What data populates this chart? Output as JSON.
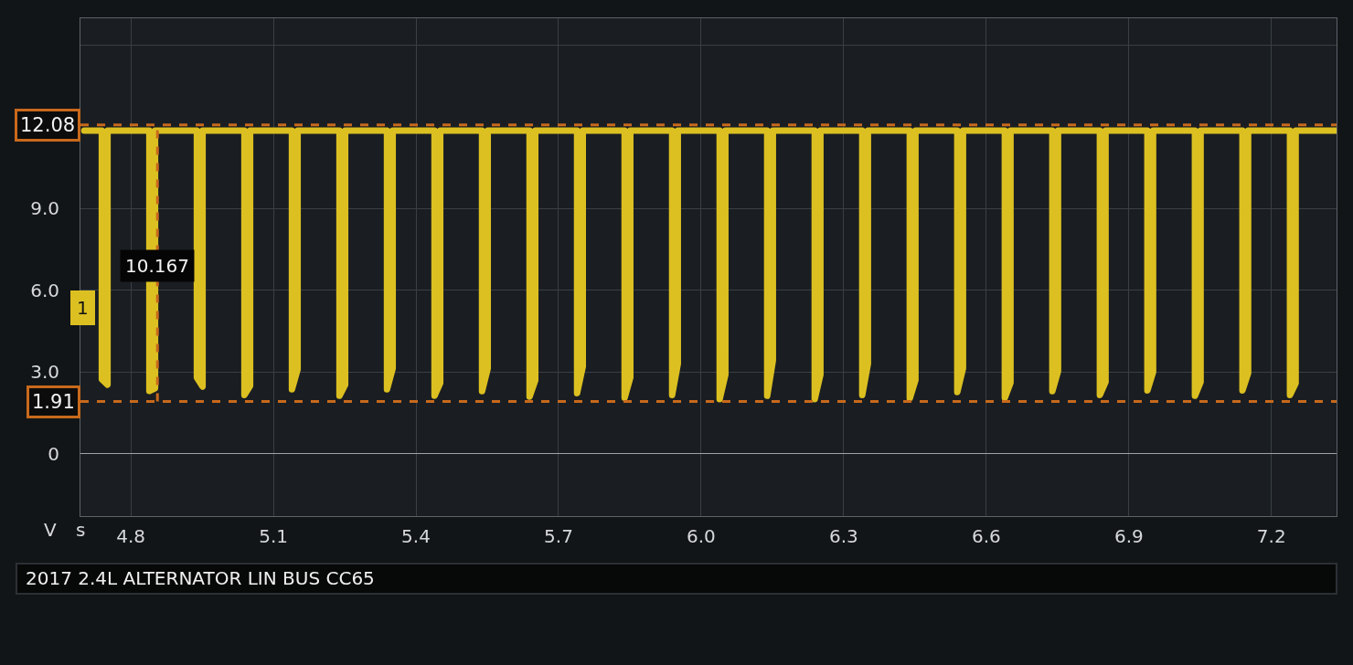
{
  "chart_data": {
    "type": "line",
    "title": "2017 2.4L ALTERNATOR LIN BUS CC65",
    "xlabel": "s",
    "ylabel": "V",
    "xlim": [
      4.694,
      7.337
    ],
    "ylim": [
      -2.3,
      16.0
    ],
    "xticks": [
      4.8,
      5.1,
      5.4,
      5.7,
      {
        "value": 6,
        "label": "6.0"
      },
      6.3,
      6.6,
      6.9,
      7.2
    ],
    "yticks": [
      0,
      {
        "value": 3,
        "label": "3.0"
      },
      {
        "value": 6,
        "label": "6.0"
      },
      {
        "value": 9,
        "label": "9.0"
      },
      {
        "value": 15,
        "label": null
      }
    ],
    "grid": true,
    "line_style": "solid",
    "series": [
      {
        "name": "1",
        "color": "#dcc021",
        "x": [
          4.702,
          4.739,
          4.739,
          4.751,
          4.751,
          4.839,
          4.839,
          4.851,
          4.851,
          4.939,
          4.939,
          4.951,
          4.951,
          5.039,
          5.039,
          5.051,
          5.051,
          5.139,
          5.139,
          5.151,
          5.151,
          5.239,
          5.239,
          5.251,
          5.251,
          5.339,
          5.339,
          5.351,
          5.351,
          5.439,
          5.439,
          5.451,
          5.451,
          5.539,
          5.539,
          5.551,
          5.551,
          5.639,
          5.639,
          5.651,
          5.651,
          5.739,
          5.739,
          5.751,
          5.751,
          5.839,
          5.839,
          5.851,
          5.851,
          5.939,
          5.939,
          5.951,
          5.951,
          6.039,
          6.039,
          6.051,
          6.051,
          6.139,
          6.139,
          6.151,
          6.151,
          6.239,
          6.239,
          6.251,
          6.251,
          6.339,
          6.339,
          6.351,
          6.351,
          6.439,
          6.439,
          6.451,
          6.451,
          6.539,
          6.539,
          6.551,
          6.551,
          6.639,
          6.639,
          6.651,
          6.651,
          6.739,
          6.739,
          6.751,
          6.751,
          6.839,
          6.839,
          6.851,
          6.851,
          6.939,
          6.939,
          6.951,
          6.951,
          7.039,
          7.039,
          7.051,
          7.051,
          7.139,
          7.139,
          7.151,
          7.151,
          7.239,
          7.239,
          7.251,
          7.251,
          7.337
        ],
        "values": [
          11.87,
          11.87,
          2.73,
          2.53,
          11.87,
          11.87,
          2.3,
          2.4,
          11.87,
          11.87,
          2.79,
          2.46,
          11.87,
          11.87,
          2.15,
          2.49,
          11.87,
          11.87,
          2.36,
          3.1,
          11.87,
          11.87,
          2.12,
          2.53,
          11.87,
          11.87,
          2.36,
          3.13,
          11.87,
          11.87,
          2.12,
          2.59,
          11.87,
          11.87,
          2.29,
          3.13,
          11.87,
          11.87,
          2.09,
          2.69,
          11.87,
          11.87,
          2.22,
          3.2,
          11.87,
          11.87,
          2.05,
          2.79,
          11.87,
          11.87,
          2.15,
          3.3,
          11.87,
          11.87,
          2.0,
          2.9,
          11.87,
          11.87,
          2.12,
          3.43,
          11.87,
          11.87,
          2.0,
          2.9,
          11.87,
          11.87,
          2.15,
          3.3,
          11.87,
          11.87,
          2.02,
          2.7,
          11.87,
          11.87,
          2.26,
          3.13,
          11.87,
          11.87,
          2.05,
          2.6,
          11.87,
          11.87,
          2.29,
          3.03,
          11.87,
          11.87,
          2.15,
          2.63,
          11.87,
          11.87,
          2.32,
          3.0,
          11.87,
          11.87,
          2.12,
          2.63,
          11.87,
          11.87,
          2.32,
          2.96,
          11.87,
          11.87,
          2.15,
          2.59,
          11.87,
          11.87
        ]
      }
    ],
    "ref_lines": [
      {
        "axis": "y",
        "value": 12.08,
        "label": "12.08",
        "color": "#c8691c",
        "line_style": "dashed"
      },
      {
        "axis": "y",
        "value": 1.91,
        "label": "1.91",
        "color": "#c8691c",
        "line_style": "dashed"
      },
      {
        "axis": "x",
        "value": 4.856,
        "color": "#c8691c",
        "line_style": "dashed"
      }
    ],
    "annotations": [
      {
        "text": "10.167",
        "x": 4.856,
        "y": 6.9
      }
    ]
  }
}
